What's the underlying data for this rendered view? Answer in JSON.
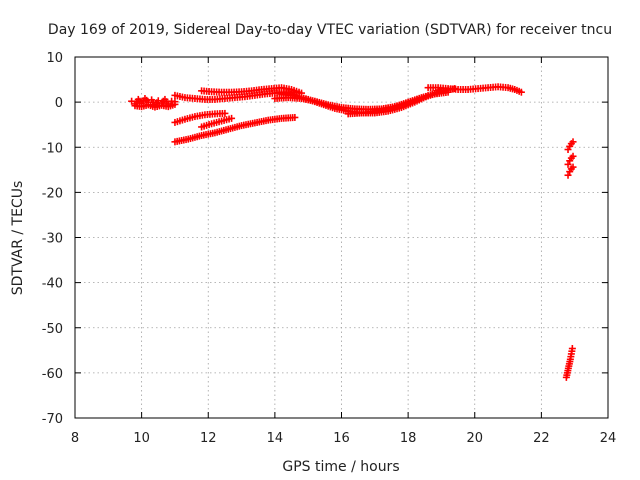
{
  "chart_data": {
    "type": "scatter",
    "title": "Day 169 of 2019, Sidereal Day-to-day VTEC variation (SDTVAR) for receiver tncu",
    "xlabel": "GPS time / hours",
    "ylabel": "SDTVAR / TECUs",
    "xlim": [
      8,
      24
    ],
    "ylim": [
      -70,
      10
    ],
    "xticks": [
      8,
      10,
      12,
      14,
      16,
      18,
      20,
      22,
      24
    ],
    "yticks": [
      10,
      0,
      -10,
      -20,
      -30,
      -40,
      -50,
      -60,
      -70
    ],
    "grid": true,
    "marker": "plus",
    "color": "#ff0000",
    "series": [
      {
        "x": [
          9.7,
          9.8,
          9.9,
          10.0,
          10.1,
          10.2,
          10.3,
          10.4,
          10.5,
          10.6,
          10.7,
          10.8,
          10.9,
          11.0
        ],
        "y": [
          0.2,
          -0.4,
          0.6,
          -0.2,
          0.8,
          0.0,
          0.5,
          -0.6,
          0.3,
          -0.2,
          0.6,
          -0.4,
          0.2,
          0.1
        ]
      },
      {
        "x": [
          9.8,
          10.0,
          10.2,
          10.4,
          10.6,
          10.8,
          11.0
        ],
        "y": [
          -0.8,
          -1.0,
          -0.6,
          -1.1,
          -0.7,
          -1.0,
          -0.5
        ]
      },
      {
        "x": [
          11.0,
          11.3,
          11.6,
          11.9,
          12.2,
          12.5,
          12.8,
          13.1,
          13.4,
          13.7,
          14.0,
          14.2,
          14.4,
          14.6
        ],
        "y": [
          1.5,
          1.0,
          0.8,
          0.6,
          0.6,
          0.8,
          1.0,
          1.2,
          1.5,
          1.8,
          2.0,
          2.2,
          2.0,
          1.5
        ]
      },
      {
        "x": [
          11.8,
          12.1,
          12.4,
          12.7,
          13.0,
          13.3,
          13.6,
          13.9,
          14.2,
          14.5,
          14.8
        ],
        "y": [
          2.5,
          2.3,
          2.2,
          2.2,
          2.3,
          2.5,
          2.8,
          3.0,
          3.2,
          2.8,
          2.0
        ]
      },
      {
        "x": [
          14.0,
          14.4,
          14.8,
          15.2,
          15.6,
          16.0,
          16.4,
          16.8,
          17.2,
          17.6,
          18.0,
          18.4,
          18.8,
          19.2
        ],
        "y": [
          0.8,
          1.0,
          0.8,
          0.2,
          -0.6,
          -1.2,
          -1.5,
          -1.6,
          -1.5,
          -1.0,
          0.0,
          1.0,
          1.8,
          2.2
        ]
      },
      {
        "x": [
          14.2,
          14.6,
          15.0,
          15.4,
          15.8,
          16.2,
          16.6,
          17.0,
          17.4,
          17.8,
          18.2,
          18.6,
          19.0
        ],
        "y": [
          1.8,
          1.4,
          0.6,
          -0.4,
          -1.4,
          -2.0,
          -2.4,
          -2.4,
          -2.0,
          -1.2,
          0.0,
          1.4,
          2.4
        ]
      },
      {
        "x": [
          16.2,
          16.6,
          17.0,
          17.4,
          17.8,
          18.2,
          18.6,
          19.0,
          19.4
        ],
        "y": [
          -2.6,
          -2.4,
          -2.0,
          -1.4,
          -0.6,
          0.4,
          1.4,
          2.4,
          3.0
        ]
      },
      {
        "x": [
          18.6,
          18.9,
          19.2,
          19.5,
          19.8,
          20.1,
          20.4,
          20.7,
          21.0,
          21.2,
          21.4
        ],
        "y": [
          3.2,
          3.2,
          3.0,
          2.8,
          2.8,
          3.0,
          3.2,
          3.4,
          3.2,
          2.8,
          2.2
        ]
      },
      {
        "x": [
          11.0,
          11.3,
          11.6,
          11.9,
          12.2,
          12.5
        ],
        "y": [
          -4.5,
          -3.8,
          -3.2,
          -2.8,
          -2.6,
          -2.5
        ]
      },
      {
        "x": [
          11.8,
          12.1,
          12.4,
          12.7
        ],
        "y": [
          -5.5,
          -4.8,
          -4.2,
          -3.6
        ]
      },
      {
        "x": [
          11.0,
          11.4,
          11.8,
          12.2,
          12.6,
          13.0,
          13.4,
          13.8,
          14.2,
          14.6
        ],
        "y": [
          -8.8,
          -8.2,
          -7.4,
          -6.8,
          -6.0,
          -5.2,
          -4.6,
          -4.0,
          -3.6,
          -3.4
        ]
      },
      {
        "x": [
          22.8,
          22.85,
          22.9,
          22.95
        ],
        "y": [
          -10.5,
          -9.8,
          -9.2,
          -8.8
        ]
      },
      {
        "x": [
          22.8,
          22.85,
          22.9,
          22.95
        ],
        "y": [
          -13.8,
          -13.0,
          -12.4,
          -12.0
        ]
      },
      {
        "x": [
          22.8,
          22.85,
          22.9,
          22.95
        ],
        "y": [
          -16.2,
          -15.4,
          -14.8,
          -14.4
        ]
      },
      {
        "x": [
          22.75,
          22.78,
          22.81,
          22.84,
          22.87,
          22.9,
          22.93
        ],
        "y": [
          -61.0,
          -60.0,
          -59.0,
          -58.0,
          -57.0,
          -55.8,
          -54.6
        ]
      }
    ]
  }
}
